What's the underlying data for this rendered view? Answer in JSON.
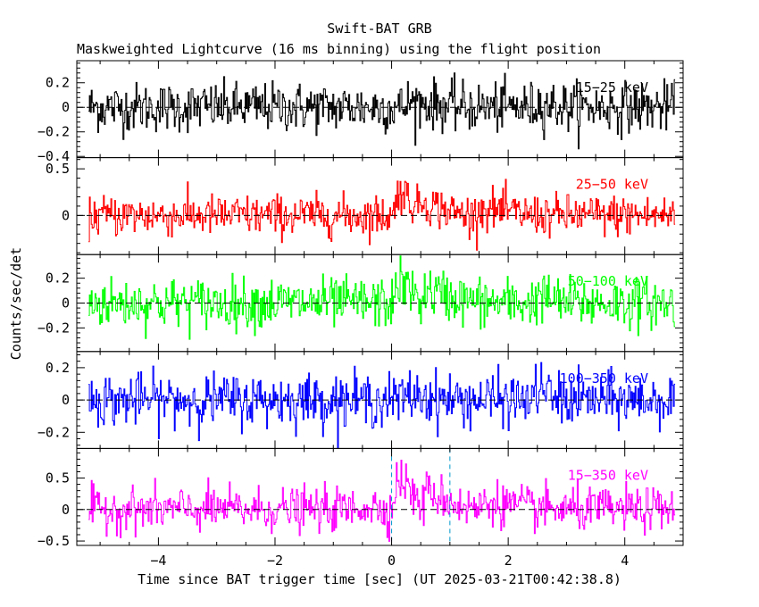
{
  "chart_data": {
    "type": "line",
    "title": "Swift-BAT GRB",
    "subtitle": "Maskweighted Lightcurve (16 ms binning) using the flight position",
    "xlabel": "Time since BAT trigger time [sec] (UT 2025-03-21T00:42:38.8)",
    "ylabel": "Counts/sec/det",
    "xlim": [
      -5.4,
      5.0
    ],
    "x_ticks": [
      -4,
      -2,
      0,
      2,
      4
    ],
    "x_tick_labels": [
      "−4",
      "−2",
      "0",
      "2",
      "4"
    ],
    "data_range": [
      -5.2,
      4.85
    ],
    "bin_seconds": 0.016,
    "markers": [
      0.0,
      1.0
    ],
    "panels": [
      {
        "name": "15−25 keV",
        "color": "#000000",
        "ylim": [
          -0.41,
          0.38
        ],
        "y_ticks": [
          0.2,
          0,
          -0.2,
          -0.4
        ],
        "y_tick_labels": [
          "0.2",
          "0",
          "−0.2",
          "−0.4"
        ],
        "noise_sd": 0.1,
        "bumps": [
          [
            0.3,
            0.6,
            0.04
          ],
          [
            2.5,
            0.3,
            0.03
          ]
        ]
      },
      {
        "name": "25−50 keV",
        "color": "#ff0000",
        "ylim": [
          -0.42,
          0.62
        ],
        "y_ticks": [
          0.5,
          0
        ],
        "y_tick_labels": [
          "0.5",
          "0"
        ],
        "noise_sd": 0.11,
        "bumps": [
          [
            0.1,
            0.3,
            0.26
          ],
          [
            0.5,
            0.5,
            0.12
          ],
          [
            1.5,
            0.6,
            0.07
          ]
        ]
      },
      {
        "name": "50−100 keV",
        "color": "#00ff00",
        "ylim": [
          -0.39,
          0.39
        ],
        "y_ticks": [
          0.2,
          0,
          -0.2
        ],
        "y_tick_labels": [
          "0.2",
          "0",
          "−0.2"
        ],
        "noise_sd": 0.1,
        "bumps": [
          [
            0.1,
            0.3,
            0.16
          ],
          [
            0.6,
            0.6,
            0.08
          ],
          [
            2.5,
            0.3,
            0.05
          ]
        ]
      },
      {
        "name": "100−350 keV",
        "color": "#0000ff",
        "ylim": [
          -0.3,
          0.3
        ],
        "y_ticks": [
          0.2,
          0,
          -0.2
        ],
        "y_tick_labels": [
          "0.2",
          "0",
          "−0.2"
        ],
        "noise_sd": 0.08,
        "bumps": [
          [
            0.3,
            0.4,
            0.03
          ],
          [
            2.5,
            0.2,
            0.08
          ]
        ]
      },
      {
        "name": "15−350 keV",
        "color": "#ff00ff",
        "ylim": [
          -0.57,
          0.97
        ],
        "y_ticks": [
          0.5,
          0,
          -0.5
        ],
        "y_tick_labels": [
          "0.5",
          "0",
          "−0.5"
        ],
        "noise_sd": 0.17,
        "bumps": [
          [
            0.1,
            0.3,
            0.5
          ],
          [
            0.6,
            0.5,
            0.25
          ],
          [
            1.6,
            0.6,
            0.12
          ],
          [
            -0.5,
            0.3,
            0.06
          ]
        ]
      }
    ]
  }
}
